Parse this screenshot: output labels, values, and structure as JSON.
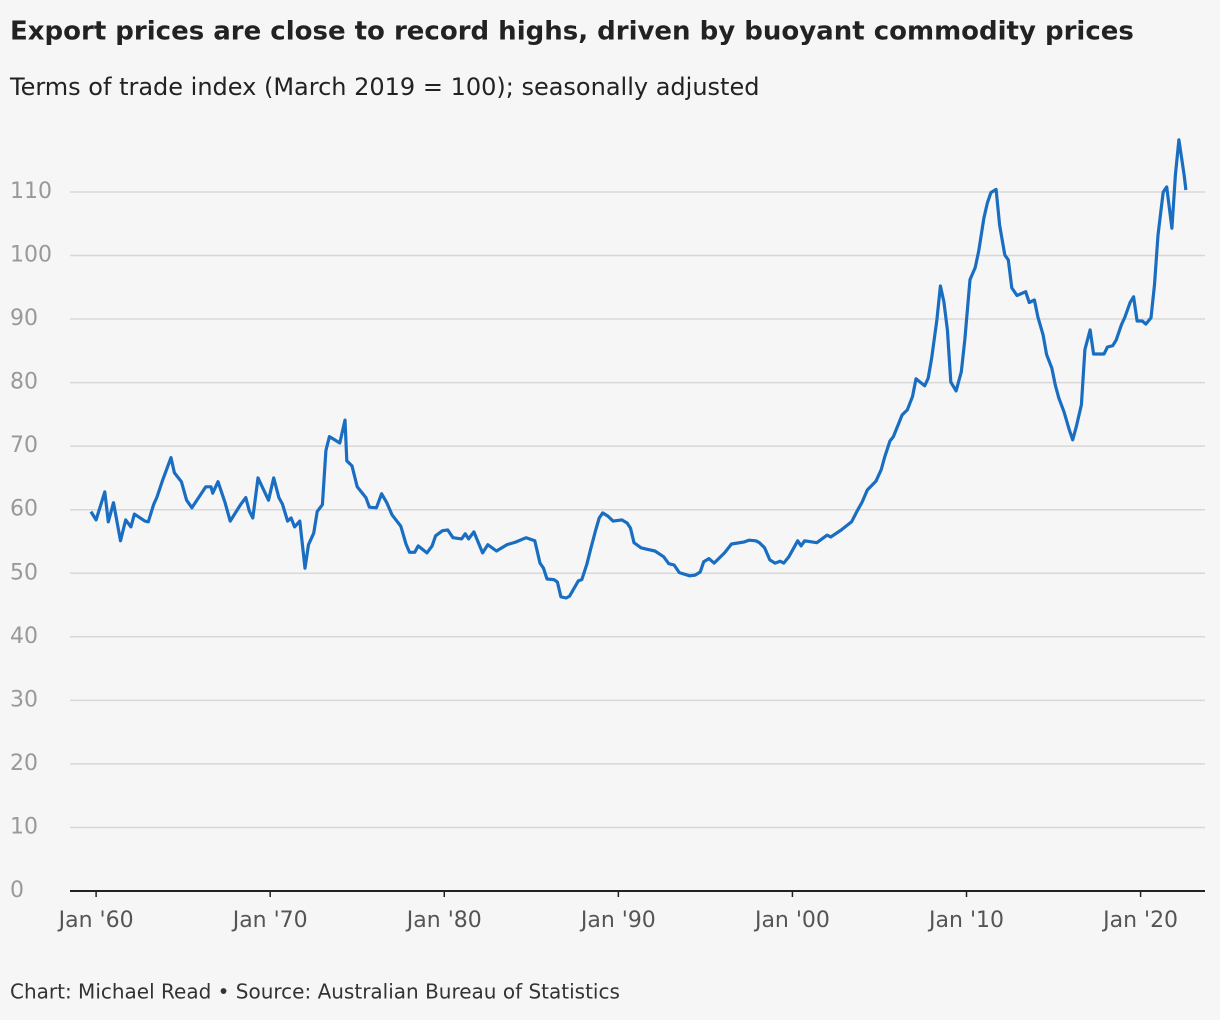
{
  "chart_data": {
    "type": "line",
    "title": "Export prices are close to record highs, driven by buoyant commodity prices",
    "subtitle": "Terms of trade index (March 2019 = 100); seasonally adjusted",
    "source": "Chart: Michael Read • Source: Australian Bureau of Statistics",
    "x": [
      1959.7,
      1960.0,
      1960.5,
      1960.7,
      1961.0,
      1961.4,
      1961.7,
      1962.0,
      1962.2,
      1962.8,
      1963.0,
      1963.3,
      1963.5,
      1963.8,
      1964.3,
      1964.5,
      1964.9,
      1965.2,
      1965.5,
      1966.3,
      1966.6,
      1966.7,
      1967.0,
      1967.4,
      1967.7,
      1968.3,
      1968.6,
      1968.8,
      1969.0,
      1969.3,
      1969.9,
      1970.2,
      1970.5,
      1970.7,
      1971.0,
      1971.2,
      1971.4,
      1971.7,
      1972.0,
      1972.2,
      1972.5,
      1972.7,
      1973.0,
      1973.2,
      1973.4,
      1974.0,
      1974.3,
      1974.4,
      1974.7,
      1975.0,
      1975.5,
      1975.7,
      1976.1,
      1976.4,
      1976.7,
      1977.0,
      1977.5,
      1977.8,
      1978.0,
      1978.3,
      1978.5,
      1979.0,
      1979.3,
      1979.5,
      1979.9,
      1980.2,
      1980.5,
      1981.0,
      1981.2,
      1981.4,
      1981.7,
      1982.2,
      1982.5,
      1983.0,
      1983.6,
      1984.1,
      1984.7,
      1985.2,
      1985.5,
      1985.7,
      1985.9,
      1986.3,
      1986.5,
      1986.7,
      1987.0,
      1987.2,
      1987.7,
      1987.9,
      1988.2,
      1988.4,
      1988.7,
      1988.9,
      1989.1,
      1989.4,
      1989.7,
      1990.2,
      1990.5,
      1990.7,
      1990.9,
      1991.3,
      1991.6,
      1992.1,
      1992.6,
      1992.9,
      1993.2,
      1993.5,
      1994.1,
      1994.4,
      1994.7,
      1994.9,
      1995.2,
      1995.5,
      1996.1,
      1996.5,
      1997.2,
      1997.5,
      1997.9,
      1998.1,
      1998.4,
      1998.7,
      1999.0,
      1999.3,
      1999.5,
      1999.8,
      2000.3,
      2000.5,
      2000.7,
      2001.4,
      2002.0,
      2002.2,
      2002.8,
      2003.4,
      2003.7,
      2004.0,
      2004.3,
      2004.8,
      2005.1,
      2005.3,
      2005.6,
      2005.8,
      2006.3,
      2006.6,
      2006.9,
      2007.1,
      2007.6,
      2007.8,
      2008.0,
      2008.3,
      2008.5,
      2008.7,
      2008.9,
      2009.1,
      2009.4,
      2009.7,
      2009.9,
      2010.2,
      2010.5,
      2010.7,
      2011.0,
      2011.2,
      2011.4,
      2011.7,
      2011.9,
      2012.2,
      2012.4,
      2012.6,
      2012.9,
      2013.4,
      2013.6,
      2013.9,
      2014.1,
      2014.4,
      2014.6,
      2014.9,
      2015.1,
      2015.3,
      2015.6,
      2015.9,
      2016.1,
      2016.3,
      2016.6,
      2016.8,
      2017.1,
      2017.3,
      2017.9,
      2018.1,
      2018.4,
      2018.6,
      2018.9,
      2019.1,
      2019.4,
      2019.6,
      2019.8,
      2020.1,
      2020.3,
      2020.6,
      2020.8,
      2021.0,
      2021.3,
      2021.5,
      2021.8,
      2022.0,
      2022.2,
      2022.5,
      2022.6
    ],
    "series": [
      {
        "name": "Terms of trade index",
        "color": "#1a6ec2",
        "values": [
          59.7,
          58.4,
          62.8,
          58.1,
          61.1,
          55.1,
          58.4,
          57.3,
          59.3,
          58.2,
          58.1,
          60.8,
          62.0,
          64.5,
          68.2,
          65.8,
          64.4,
          61.5,
          60.3,
          63.6,
          63.6,
          62.6,
          64.4,
          61.2,
          58.2,
          60.8,
          61.9,
          59.8,
          58.7,
          65.0,
          61.5,
          65.0,
          61.9,
          60.9,
          58.2,
          58.7,
          57.3,
          58.2,
          50.8,
          54.5,
          56.3,
          59.7,
          60.8,
          69.3,
          71.5,
          70.5,
          74.1,
          67.7,
          66.9,
          63.6,
          61.9,
          60.4,
          60.3,
          62.5,
          61.1,
          59.2,
          57.4,
          54.6,
          53.3,
          53.3,
          54.3,
          53.2,
          54.3,
          55.9,
          56.7,
          56.8,
          55.6,
          55.4,
          56.2,
          55.4,
          56.5,
          53.2,
          54.5,
          53.5,
          54.5,
          54.9,
          55.6,
          55.1,
          51.6,
          50.8,
          49.1,
          49.0,
          48.6,
          46.3,
          46.1,
          46.4,
          48.8,
          49.0,
          51.5,
          53.7,
          56.8,
          58.7,
          59.5,
          59.0,
          58.2,
          58.4,
          57.9,
          57.1,
          54.8,
          54.0,
          53.8,
          53.5,
          52.6,
          51.5,
          51.3,
          50.1,
          49.6,
          49.7,
          50.2,
          51.8,
          52.3,
          51.6,
          53.2,
          54.6,
          54.9,
          55.2,
          55.1,
          54.8,
          54.0,
          52.1,
          51.6,
          51.9,
          51.6,
          52.6,
          55.1,
          54.3,
          55.1,
          54.8,
          56.0,
          55.7,
          56.8,
          58.1,
          59.7,
          61.2,
          63.1,
          64.5,
          66.3,
          68.3,
          70.8,
          71.5,
          74.9,
          75.7,
          77.8,
          80.6,
          79.5,
          80.7,
          83.9,
          89.9,
          95.2,
          92.7,
          88.3,
          80.1,
          78.7,
          81.7,
          86.7,
          96.2,
          98.1,
          100.7,
          105.9,
          108.3,
          109.9,
          110.4,
          104.8,
          100.1,
          99.3,
          94.9,
          93.7,
          94.3,
          92.6,
          93.0,
          90.3,
          87.5,
          84.4,
          82.3,
          79.6,
          77.6,
          75.4,
          72.6,
          71.0,
          73.0,
          76.5,
          85.2,
          88.3,
          84.5,
          84.5,
          85.6,
          85.8,
          86.7,
          89.1,
          90.3,
          92.6,
          93.5,
          89.7,
          89.7,
          89.2,
          90.2,
          95.4,
          103.2,
          110.0,
          110.8,
          104.3,
          112.7,
          118.2,
          112.7,
          110.3
        ]
      }
    ],
    "xlim": [
      1958.5,
      2023.7
    ],
    "xticks": [
      {
        "value": 1960,
        "label": "Jan '60"
      },
      {
        "value": 1970,
        "label": "Jan '70"
      },
      {
        "value": 1980,
        "label": "Jan '80"
      },
      {
        "value": 1990,
        "label": "Jan '90"
      },
      {
        "value": 2000,
        "label": "Jan '00"
      },
      {
        "value": 2010,
        "label": "Jan '10"
      },
      {
        "value": 2020,
        "label": "Jan '20"
      }
    ],
    "ylim": [
      0,
      120
    ],
    "yticks": [
      0,
      10,
      20,
      30,
      40,
      50,
      60,
      70,
      80,
      90,
      100,
      110
    ],
    "grid": true
  }
}
